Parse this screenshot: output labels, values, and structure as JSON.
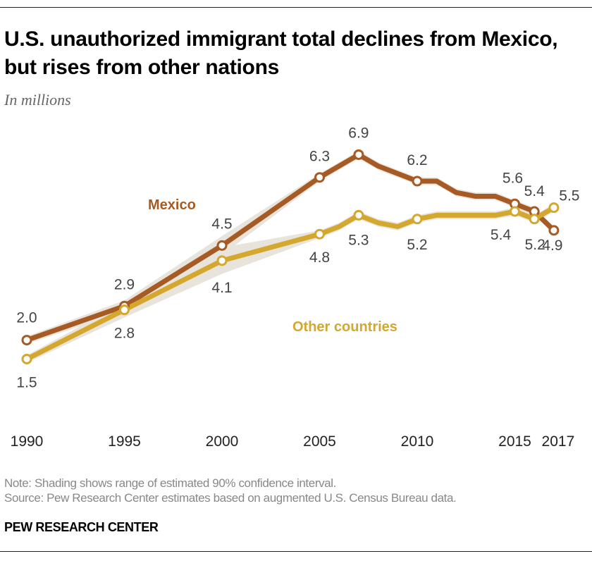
{
  "title": "U.S. unauthorized immigrant total declines from Mexico, but rises from other nations",
  "subtitle": "In millions",
  "note": "Note: Shading shows range of estimated 90% confidence interval.",
  "source": "Source: Pew Research Center estimates based on augmented U.S. Census Bureau data.",
  "brand": "PEW RESEARCH CENTER",
  "chart_data": {
    "type": "line",
    "title": "U.S. unauthorized immigrant total declines from Mexico, but rises from other nations",
    "ylabel": "In millions",
    "xlim": [
      1990,
      2017
    ],
    "ylim": [
      0,
      7.5
    ],
    "grid": false,
    "legend": "inline labels",
    "x_ticks": [
      "1990",
      "1995",
      "2000",
      "2005",
      "2010",
      "2015",
      "2017"
    ],
    "series": [
      {
        "name": "Mexico",
        "color": "#a65a24",
        "x": [
          1990,
          1995,
          2000,
          2005,
          2006,
          2007,
          2008,
          2009,
          2010,
          2011,
          2012,
          2013,
          2014,
          2015,
          2016,
          2017
        ],
        "values": [
          2.0,
          2.9,
          4.5,
          6.3,
          6.6,
          6.9,
          6.6,
          6.4,
          6.2,
          6.2,
          5.9,
          5.8,
          5.8,
          5.6,
          5.4,
          4.9
        ],
        "labeled_x": [
          1990,
          1995,
          2000,
          2005,
          2007,
          2010,
          2015,
          2016,
          2017
        ],
        "labels": [
          "2.0",
          "2.9",
          "4.5",
          "6.3",
          "6.9",
          "6.2",
          "5.6",
          "5.4",
          "4.9"
        ],
        "ci_halfwidth": [
          0.1,
          0.15,
          0.25,
          0.1,
          0.1,
          0.1,
          0.1,
          0.1,
          0.1,
          0.1,
          0.1,
          0.1,
          0.1,
          0.1,
          0.1,
          0.1
        ]
      },
      {
        "name": "Other countries",
        "color": "#d4a82e",
        "x": [
          1990,
          1995,
          2000,
          2005,
          2006,
          2007,
          2008,
          2009,
          2010,
          2011,
          2012,
          2013,
          2014,
          2015,
          2016,
          2017
        ],
        "values": [
          1.5,
          2.8,
          4.1,
          4.8,
          5.0,
          5.3,
          5.1,
          5.0,
          5.2,
          5.3,
          5.3,
          5.3,
          5.3,
          5.4,
          5.2,
          5.5
        ],
        "labeled_x": [
          1990,
          1995,
          2000,
          2005,
          2007,
          2010,
          2015,
          2016,
          2017
        ],
        "labels": [
          "1.5",
          "2.8",
          "4.1",
          "4.8",
          "5.3",
          "5.2",
          "5.4",
          "5.2",
          "5.5"
        ],
        "ci_halfwidth": [
          0.1,
          0.2,
          0.35,
          0.1,
          0.1,
          0.1,
          0.1,
          0.1,
          0.1,
          0.1,
          0.1,
          0.1,
          0.1,
          0.1,
          0.1,
          0.1
        ]
      }
    ]
  }
}
